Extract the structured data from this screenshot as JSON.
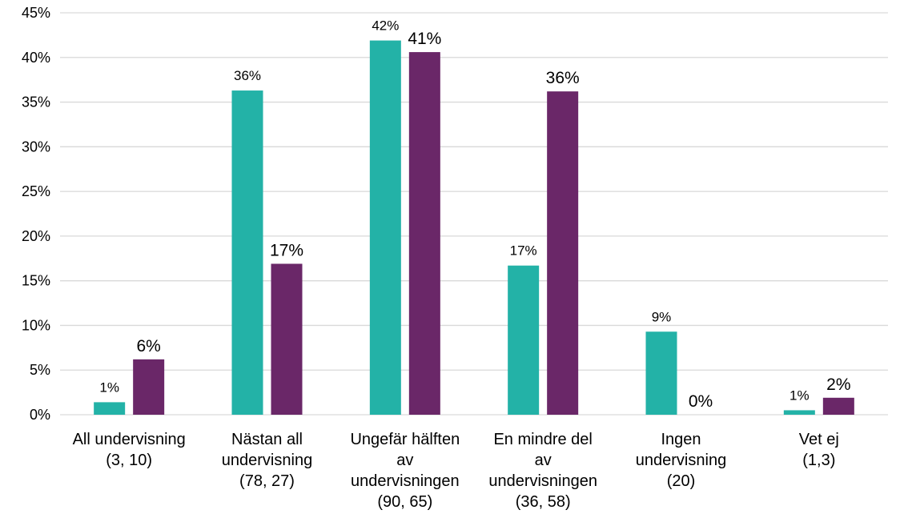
{
  "chart_data": {
    "type": "bar",
    "categories": [
      [
        "All undervisning",
        "(3, 10)"
      ],
      [
        "Nästan all",
        "undervisning",
        "(78, 27)"
      ],
      [
        "Ungefär hälften",
        "av",
        "undervisningen",
        "(90, 65)"
      ],
      [
        "En mindre del",
        "av",
        "undervisningen",
        "(36, 58)"
      ],
      [
        "Ingen",
        "undervisning",
        "(20)"
      ],
      [
        "Vet ej",
        "(1,3)"
      ]
    ],
    "series": [
      {
        "color": "#23b2a7",
        "values": [
          1.4,
          36.3,
          41.9,
          16.7,
          9.3,
          0.5
        ],
        "labels": [
          "1%",
          "36%",
          "42%",
          "17%",
          "9%",
          "1%"
        ]
      },
      {
        "color": "#6a2768",
        "values": [
          6.2,
          16.9,
          40.6,
          36.2,
          0,
          1.9
        ],
        "labels": [
          "6%",
          "17%",
          "41%",
          "36%",
          "0%",
          "2%"
        ]
      }
    ],
    "yticks": [
      "0%",
      "5%",
      "10%",
      "15%",
      "20%",
      "25%",
      "30%",
      "35%",
      "40%",
      "45%"
    ],
    "ylim": [
      0,
      45
    ],
    "grid": true,
    "legend": "none"
  }
}
